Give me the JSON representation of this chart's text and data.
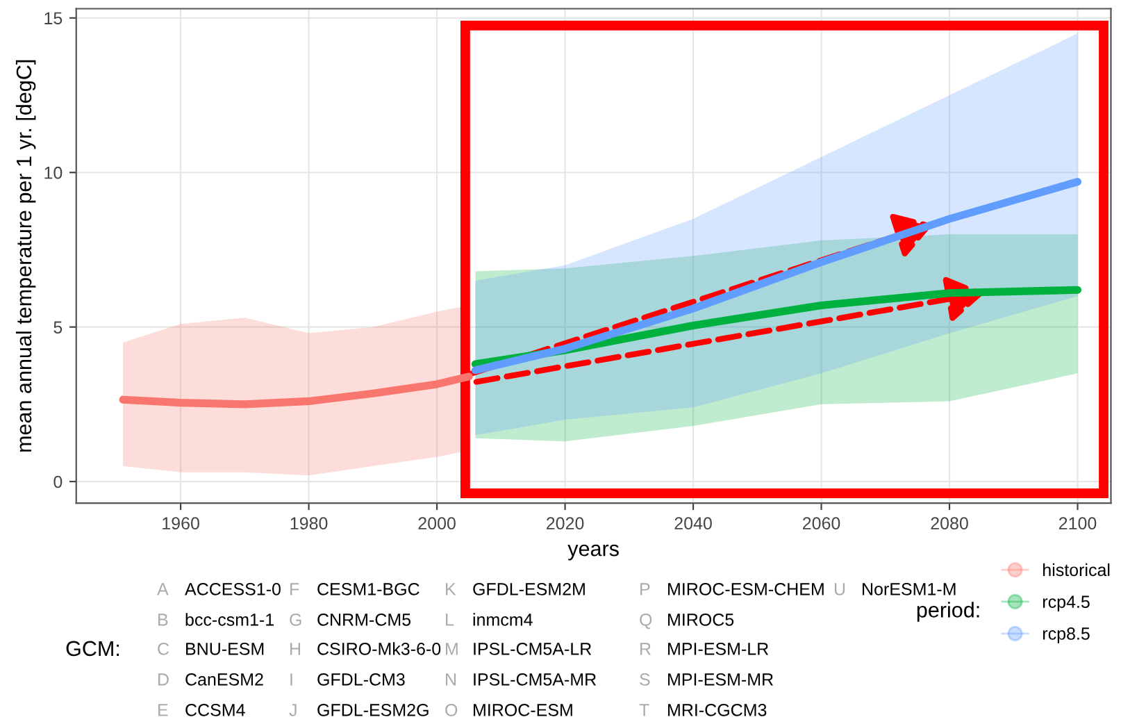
{
  "chart_data": {
    "type": "line",
    "xlabel": "years",
    "ylabel": "mean annual temperature per 1 yr. [degC]",
    "legend_title": "period:",
    "xlim": [
      1943.7,
      2105.2
    ],
    "xticks": [
      1960,
      1980,
      2000,
      2020,
      2040,
      2060,
      2080,
      2100
    ],
    "ylim": [
      -0.7,
      15.3
    ],
    "yticks": [
      0,
      5,
      10,
      15
    ],
    "grid": true,
    "legend": "bottom right",
    "marker": "none",
    "line_style": "solid",
    "series": [
      {
        "name": "historical",
        "color": "#f8766d",
        "x": [
          1951,
          1960,
          1970,
          1980,
          1990,
          2000,
          2005
        ],
        "values": [
          2.65,
          2.55,
          2.5,
          2.6,
          2.85,
          3.15,
          3.4
        ],
        "lower": [
          0.5,
          0.3,
          0.3,
          0.2,
          0.5,
          0.8,
          1.0
        ],
        "upper": [
          4.5,
          5.1,
          5.3,
          4.8,
          5.0,
          5.5,
          5.7
        ]
      },
      {
        "name": "rcp4.5",
        "color": "#00b140",
        "x": [
          2006,
          2020,
          2040,
          2060,
          2080,
          2100
        ],
        "values": [
          3.8,
          4.25,
          5.05,
          5.7,
          6.1,
          6.2
        ],
        "lower": [
          1.4,
          1.3,
          1.8,
          2.5,
          2.6,
          3.5
        ],
        "upper": [
          6.8,
          6.9,
          7.3,
          7.8,
          8.0,
          8.0
        ]
      },
      {
        "name": "rcp8.5",
        "color": "#619cff",
        "x": [
          2006,
          2020,
          2040,
          2060,
          2080,
          2100
        ],
        "values": [
          3.6,
          4.3,
          5.6,
          7.1,
          8.5,
          9.7
        ],
        "lower": [
          1.5,
          2.0,
          2.4,
          3.5,
          4.8,
          6.0
        ],
        "upper": [
          6.5,
          7.0,
          8.5,
          10.5,
          12.5,
          14.5
        ]
      }
    ],
    "annotations": [
      "GCM:",
      "A ACCESS1-0",
      "B bcc-csm1-1",
      "C BNU-ESM",
      "D CanESM2",
      "E CCSM4",
      "F CESM1-BGC",
      "G CNRM-CM5",
      "H CSIRO-Mk3-6-0",
      "I GFDL-CM3",
      "J GFDL-ESM2G",
      "K GFDL-ESM2M",
      "L inmcm4",
      "M IPSL-CM5A-LR",
      "N IPSL-CM5A-MR",
      "O MIROC-ESM",
      "P MIROC-ESM-CHEM",
      "Q MIROC5",
      "R MPI-ESM-LR",
      "S MPI-ESM-MR",
      "T MRI-CGCM3",
      "U NorESM1-M"
    ]
  }
}
